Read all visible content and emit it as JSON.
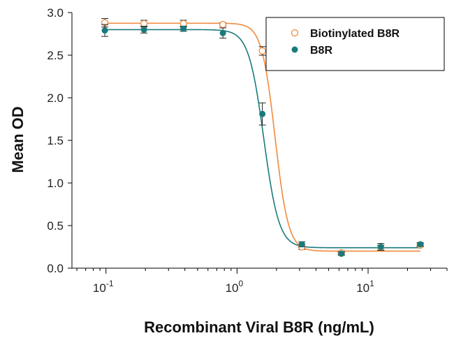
{
  "chart_data": {
    "type": "scatter",
    "xlabel": "Recombinant Viral B8R (ng/mL)",
    "ylabel": "Mean OD",
    "xscale": "log",
    "xlim": [
      0.055,
      40
    ],
    "ylim": [
      0,
      3.0
    ],
    "grid": false,
    "legend_position": "top-right",
    "x_ticks": [
      {
        "value": 0.1,
        "base": "10",
        "exp": "-1"
      },
      {
        "value": 1,
        "base": "10",
        "exp": "0"
      },
      {
        "value": 10,
        "base": "10",
        "exp": "1"
      }
    ],
    "y_ticks": [
      {
        "value": 0.0,
        "label": "0.0"
      },
      {
        "value": 0.5,
        "label": "0.5"
      },
      {
        "value": 1.0,
        "label": "1.0"
      },
      {
        "value": 1.5,
        "label": "1.5"
      },
      {
        "value": 2.0,
        "label": "2.0"
      },
      {
        "value": 2.5,
        "label": "2.5"
      },
      {
        "value": 3.0,
        "label": "3.0"
      }
    ],
    "series": [
      {
        "name": "Biotinylated B8R",
        "color": "#f08a3c",
        "marker": "open-circle",
        "x": [
          0.098,
          0.195,
          0.39,
          0.78,
          1.56,
          3.125,
          6.25,
          12.5,
          25
        ],
        "y": [
          2.88,
          2.87,
          2.87,
          2.86,
          2.55,
          0.25,
          0.18,
          0.24,
          0.27
        ],
        "err": [
          0.05,
          0.04,
          0.04,
          0.02,
          0.05,
          0.03,
          0.02,
          0.03,
          0.02
        ],
        "fit": {
          "top": 2.875,
          "bottom": 0.2,
          "ec50": 1.95,
          "hill": 8.5
        }
      },
      {
        "name": "B8R",
        "color": "#1a7a7a",
        "marker": "filled-circle",
        "x": [
          0.098,
          0.195,
          0.39,
          0.78,
          1.56,
          3.125,
          6.25,
          12.5,
          25
        ],
        "y": [
          2.79,
          2.8,
          2.81,
          2.76,
          1.81,
          0.28,
          0.17,
          0.25,
          0.28
        ],
        "err": [
          0.07,
          0.04,
          0.03,
          0.06,
          0.13,
          0.03,
          0.02,
          0.04,
          0.02
        ],
        "fit": {
          "top": 2.8,
          "bottom": 0.24,
          "ec50": 1.6,
          "hill": 7.5
        }
      }
    ]
  }
}
